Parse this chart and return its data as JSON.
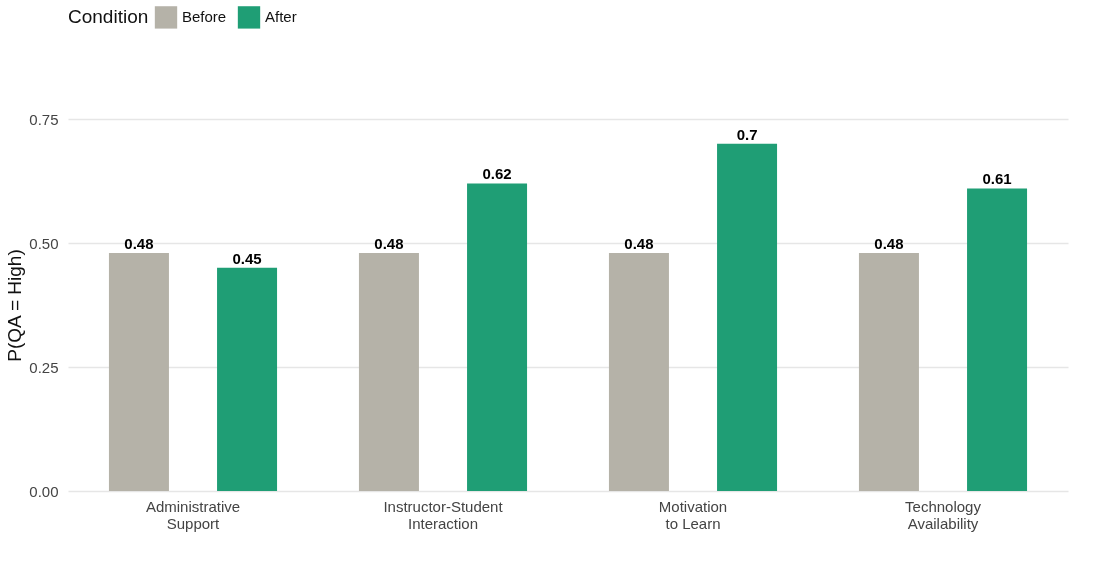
{
  "chart_data": {
    "type": "bar",
    "ylabel": "P(QA = High)",
    "legend_title": "Condition",
    "legend": "top",
    "categories": [
      "Administrative\nSupport",
      "Instructor-Student\nInteraction",
      "Motivation\nto Learn",
      "Technology\nAvailability"
    ],
    "series": [
      {
        "name": "Before",
        "color": "#b5b2a8",
        "values": [
          0.48,
          0.48,
          0.48,
          0.48
        ]
      },
      {
        "name": "After",
        "color": "#1f9e75",
        "values": [
          0.45,
          0.62,
          0.7,
          0.61
        ]
      }
    ],
    "ylim": [
      0,
      0.75
    ],
    "yticks": [
      {
        "value": 0,
        "label": "0.00"
      },
      {
        "value": 0.25,
        "label": "0.25"
      },
      {
        "value": 0.5,
        "label": "0.50"
      },
      {
        "value": 0.75,
        "label": "0.75"
      }
    ],
    "grid": "y",
    "data_labels": true
  }
}
